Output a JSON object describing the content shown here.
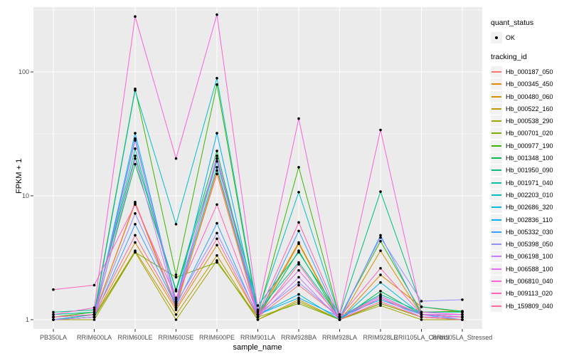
{
  "panel": {
    "background": "#EBEBEB",
    "gridline_color": "#FFFFFF",
    "tick_color": "#333333",
    "tick_label_color": "#4D4D4D",
    "point_color": "#000000"
  },
  "chart_data": {
    "type": "line",
    "title": "",
    "xlabel": "sample_name",
    "ylabel": "FPKM + 1",
    "y_scale": "log10",
    "y_ticks": [
      1,
      10,
      100
    ],
    "y_minor_ticks": [
      3.162,
      31.62,
      316.2
    ],
    "ylim": [
      0.84,
      333
    ],
    "grid": true,
    "legend_position": "right",
    "categories": [
      "PB350LA",
      "RRIM600LA",
      "RRIM600LE",
      "RRIM600SE",
      "RRIM600PE",
      "RRIM901LA",
      "RRIM928BA",
      "RRIM928LA",
      "RRIM928LE",
      "RRII105LA_Control",
      "RRII105LA_Stressed"
    ],
    "series": [
      {
        "name": "Hb_000187_050",
        "color": "#F8766D",
        "values": [
          1.05,
          1.1,
          8.9,
          1.3,
          15.0,
          1.05,
          1.9,
          1.05,
          1.5,
          1.1,
          1.05
        ]
      },
      {
        "name": "Hb_000345_450",
        "color": "#E58700",
        "values": [
          1.0,
          1.1,
          8.7,
          1.25,
          16.0,
          1.1,
          4.2,
          1.0,
          2.3,
          1.27,
          1.15
        ]
      },
      {
        "name": "Hb_000480_060",
        "color": "#D89000",
        "values": [
          1.0,
          1.05,
          4.2,
          1.2,
          4.0,
          1.05,
          4.1,
          1.0,
          3.6,
          1.1,
          1.05
        ]
      },
      {
        "name": "Hb_000522_160",
        "color": "#C09B00",
        "values": [
          1.0,
          1.05,
          3.6,
          1.1,
          3.3,
          1.0,
          1.45,
          1.0,
          1.35,
          1.05,
          1.0
        ]
      },
      {
        "name": "Hb_000538_290",
        "color": "#A3A500",
        "values": [
          1.0,
          1.0,
          3.5,
          1.0,
          3.0,
          1.0,
          1.4,
          1.0,
          1.3,
          1.0,
          1.0
        ]
      },
      {
        "name": "Hb_000701_020",
        "color": "#7CAE00",
        "values": [
          1.0,
          1.05,
          3.5,
          2.2,
          2.9,
          1.05,
          1.35,
          1.0,
          1.35,
          1.05,
          1.0
        ]
      },
      {
        "name": "Hb_000977_190",
        "color": "#39B600",
        "values": [
          1.05,
          1.15,
          73.0,
          2.3,
          79.0,
          1.1,
          17.0,
          1.05,
          4.3,
          1.15,
          1.17
        ]
      },
      {
        "name": "Hb_001348_100",
        "color": "#00BB4E",
        "values": [
          1.0,
          1.1,
          18.0,
          1.75,
          23.0,
          1.05,
          3.6,
          1.0,
          1.7,
          1.1,
          1.05
        ]
      },
      {
        "name": "Hb_001950_090",
        "color": "#00BF7D",
        "values": [
          1.15,
          1.2,
          21.0,
          1.7,
          20.0,
          1.3,
          3.5,
          1.1,
          10.8,
          1.27,
          1.17
        ]
      },
      {
        "name": "Hb_001971_040",
        "color": "#00C1A3",
        "values": [
          1.1,
          1.15,
          24.0,
          1.45,
          19.0,
          1.17,
          2.9,
          1.05,
          1.6,
          1.15,
          1.15
        ]
      },
      {
        "name": "Hb_002203_010",
        "color": "#00BFC4",
        "values": [
          1.05,
          1.1,
          71.0,
          5.9,
          89.0,
          1.15,
          10.7,
          1.05,
          1.55,
          1.1,
          1.1
        ]
      },
      {
        "name": "Hb_002686_320",
        "color": "#00BAE0",
        "values": [
          1.0,
          1.1,
          29.0,
          1.35,
          17.0,
          1.1,
          1.6,
          1.0,
          2.0,
          1.1,
          1.05
        ]
      },
      {
        "name": "Hb_002836_110",
        "color": "#00B0F6",
        "values": [
          1.05,
          1.1,
          32.0,
          1.4,
          32.0,
          1.1,
          1.5,
          1.05,
          1.45,
          1.1,
          1.05
        ]
      },
      {
        "name": "Hb_005332_030",
        "color": "#35A2FF",
        "values": [
          1.0,
          1.05,
          5.9,
          1.3,
          6.0,
          1.05,
          5.2,
          1.0,
          4.8,
          1.1,
          1.0
        ]
      },
      {
        "name": "Hb_005398_050",
        "color": "#9590FF",
        "values": [
          1.05,
          1.1,
          7.2,
          1.35,
          5.0,
          1.1,
          2.0,
          1.05,
          4.6,
          1.41,
          1.45
        ]
      },
      {
        "name": "Hb_006198_100",
        "color": "#C77CFF",
        "values": [
          1.0,
          1.05,
          20.0,
          1.3,
          21.0,
          1.05,
          2.2,
          1.0,
          1.5,
          1.05,
          1.05
        ]
      },
      {
        "name": "Hb_006588_100",
        "color": "#E76BF3",
        "values": [
          1.05,
          1.1,
          28.0,
          1.4,
          20.0,
          1.1,
          2.5,
          1.05,
          1.55,
          1.1,
          1.1
        ]
      },
      {
        "name": "Hb_006810_040",
        "color": "#FA62DB",
        "values": [
          1.1,
          1.25,
          280.0,
          20.0,
          290.0,
          1.2,
          42.0,
          1.1,
          34.0,
          1.15,
          1.1
        ]
      },
      {
        "name": "Hb_009113_020",
        "color": "#FF62BC",
        "values": [
          1.75,
          1.9,
          8.5,
          1.5,
          8.5,
          1.1,
          6.1,
          1.05,
          2.6,
          1.1,
          1.05
        ]
      },
      {
        "name": "Hb_159809_040",
        "color": "#FF6A98",
        "values": [
          1.05,
          1.1,
          4.8,
          1.25,
          4.5,
          1.05,
          2.8,
          1.0,
          1.4,
          1.05,
          1.0
        ]
      }
    ],
    "legend": {
      "quant_status_title": "quant_status",
      "quant_status_items": [
        {
          "label": "OK",
          "symbol": "point"
        }
      ],
      "tracking_title": "tracking_id"
    }
  }
}
